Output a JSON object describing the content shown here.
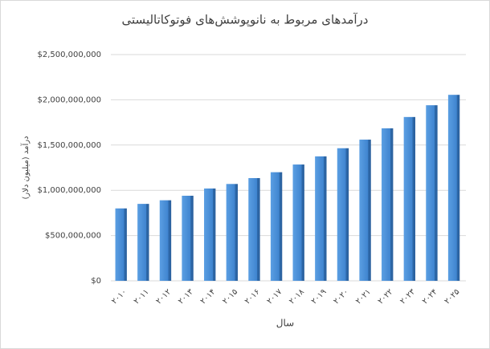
{
  "chart_data": {
    "type": "bar",
    "title": "درآمدهای مربوط به نانوپوشش‌های فوتوکاتالیستی",
    "y_label": "درآمد (میلیون دلار)",
    "x_label": "سال",
    "categories": [
      "۲۰۱۰",
      "۲۰۱۱",
      "۲۰۱۲",
      "۲۰۱۳",
      "۲۰۱۴",
      "۲۰۱۵",
      "۲۰۱۶",
      "۲۰۱۷",
      "۲۰۱۸",
      "۲۰۱۹",
      "۲۰۲۰",
      "۲۰۲۱",
      "۲۰۲۲",
      "۲۰۲۳",
      "۲۰۲۴",
      "۲۰۲۵"
    ],
    "values": [
      800000000,
      850000000,
      890000000,
      940000000,
      1020000000,
      1070000000,
      1135000000,
      1200000000,
      1285000000,
      1375000000,
      1465000000,
      1560000000,
      1685000000,
      1810000000,
      1940000000,
      2055000000
    ],
    "color": "#4a8fd6",
    "ylim": [
      0,
      2500000000
    ],
    "yticks": [
      {
        "value": 0,
        "label": "$0"
      },
      {
        "value": 500000000,
        "label": "$500,000,000"
      },
      {
        "value": 1000000000,
        "label": "$1,000,000,000"
      },
      {
        "value": 1500000000,
        "label": "$1,500,000,000"
      },
      {
        "value": 2000000000,
        "label": "$2,000,000,000"
      },
      {
        "value": 2500000000,
        "label": "$2,500,000,000"
      }
    ],
    "grid": true
  }
}
